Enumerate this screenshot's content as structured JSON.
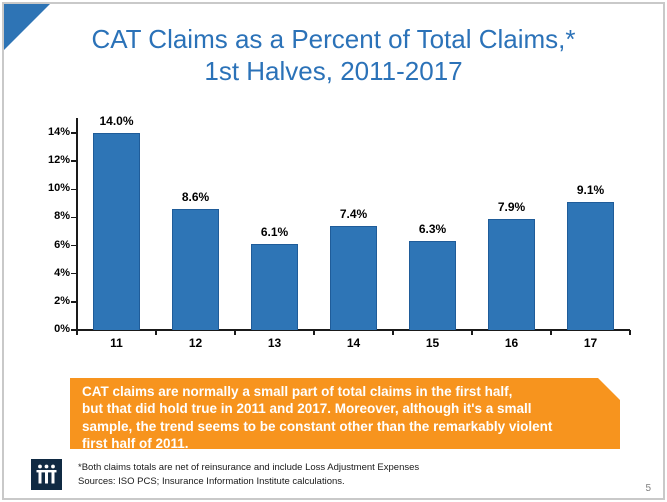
{
  "slide": {
    "title_line1": "CAT Claims as a Percent of Total Claims,*",
    "title_line2": "1st Halves, 2011-2017",
    "callout_text": "CAT claims are normally a small part of total claims in the first half,\nbut that did hold true in 2011 and 2017. Moreover, although it's a small\nsample, the trend seems to be constant other than the remarkably violent\nfirst half of 2011.",
    "footnote": "*Both claims totals are net of reinsurance and include Loss Adjustment Expenses\nSources: ISO PCS; Insurance Information Institute calculations.",
    "logo_name": "triple-i-logo",
    "page_number": "5"
  },
  "colors": {
    "title_blue": "#2b72b8",
    "bar_fill": "#2e75b6",
    "bar_border": "#1f5c99",
    "callout_orange": "#f7941e",
    "logo_navy": "#102a43",
    "corner_triangle_blue": "#2e74b5"
  },
  "chart_data": {
    "type": "bar",
    "title": "",
    "xlabel": "",
    "ylabel": "",
    "categories": [
      "11",
      "12",
      "13",
      "14",
      "15",
      "16",
      "17"
    ],
    "values": [
      14.0,
      8.6,
      6.1,
      7.4,
      6.3,
      7.9,
      9.1
    ],
    "value_labels": [
      "14.0%",
      "8.6%",
      "6.1%",
      "7.4%",
      "6.3%",
      "7.9%",
      "9.1%"
    ],
    "y_tick_labels": [
      "0%",
      "2%",
      "4%",
      "6%",
      "8%",
      "10%",
      "12%",
      "14%"
    ],
    "y_tick_values": [
      0,
      2,
      4,
      6,
      8,
      10,
      12,
      14
    ],
    "ylim": [
      0,
      15
    ],
    "grid": false,
    "legend": null
  }
}
